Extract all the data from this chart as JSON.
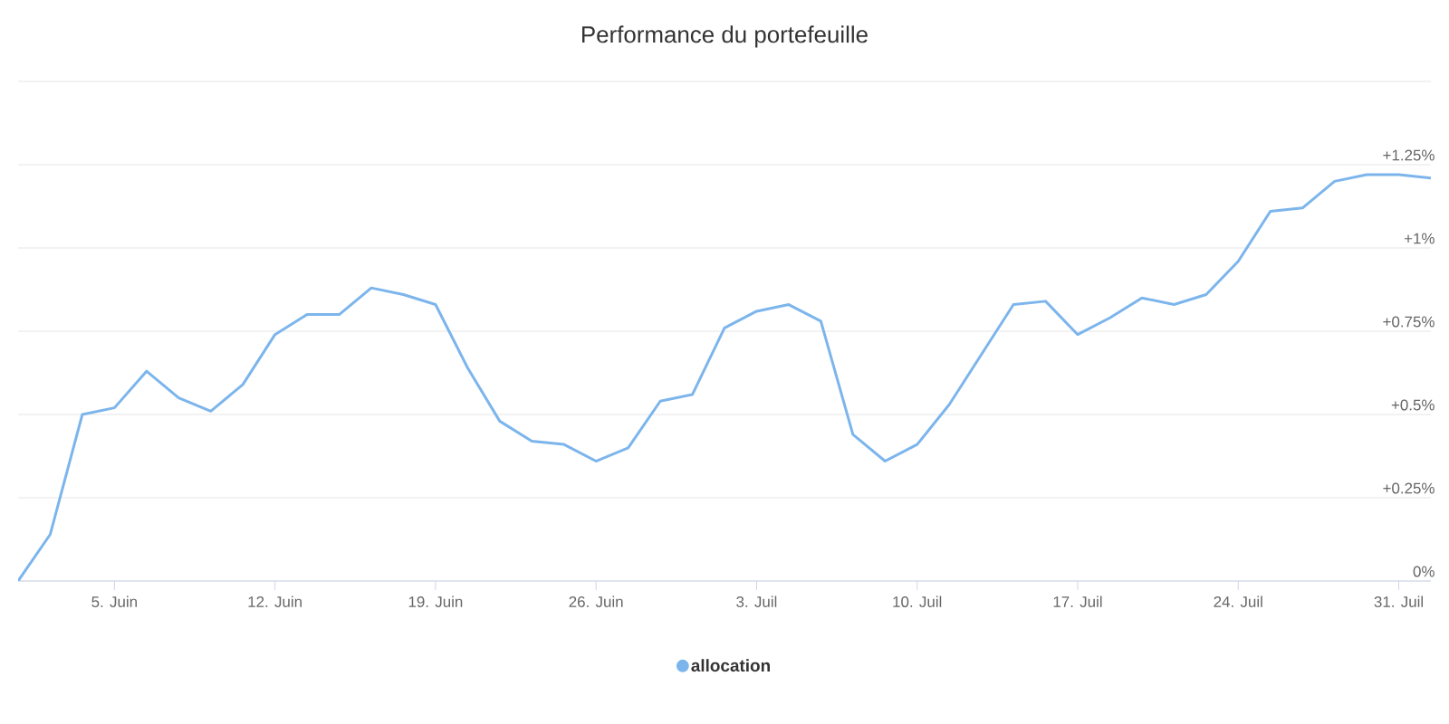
{
  "chart_data": {
    "type": "line",
    "title": "Performance du portefeuille",
    "categories": [
      null,
      null,
      null,
      "5. Juin",
      null,
      null,
      null,
      null,
      "12. Juin",
      null,
      null,
      null,
      null,
      "19. Juin",
      null,
      null,
      null,
      null,
      "26. Juin",
      null,
      null,
      null,
      null,
      "3. Juil",
      null,
      null,
      null,
      null,
      "10. Juil",
      null,
      null,
      null,
      null,
      "17. Juil",
      null,
      null,
      null,
      null,
      "24. Juil",
      null,
      null,
      null,
      null,
      "31. Juil",
      null
    ],
    "series": [
      {
        "name": "allocation",
        "color": "#7cb5ec",
        "values": [
          0,
          0.14,
          0.5,
          0.52,
          0.63,
          0.55,
          0.51,
          0.59,
          0.74,
          0.8,
          0.8,
          0.88,
          0.86,
          0.83,
          0.64,
          0.48,
          0.42,
          0.41,
          0.36,
          0.4,
          0.54,
          0.56,
          0.76,
          0.81,
          0.83,
          0.78,
          0.44,
          0.36,
          0.41,
          0.53,
          0.68,
          0.83,
          0.84,
          0.74,
          0.79,
          0.85,
          0.83,
          0.86,
          0.96,
          1.11,
          1.12,
          1.2,
          1.22,
          1.22,
          1.21
        ]
      }
    ],
    "ylim": [
      0,
      1.5
    ],
    "yticks": [
      {
        "value": 0,
        "label": "0%"
      },
      {
        "value": 0.25,
        "label": "+0.25%"
      },
      {
        "value": 0.5,
        "label": "+0.5%"
      },
      {
        "value": 0.75,
        "label": "+0.75%"
      },
      {
        "value": 1,
        "label": "+1%"
      },
      {
        "value": 1.25,
        "label": "+1.25%"
      },
      {
        "value": 1.5,
        "label": null
      }
    ],
    "grid": "y",
    "legend": "bottom",
    "marker": "none",
    "line_style": "solid"
  }
}
